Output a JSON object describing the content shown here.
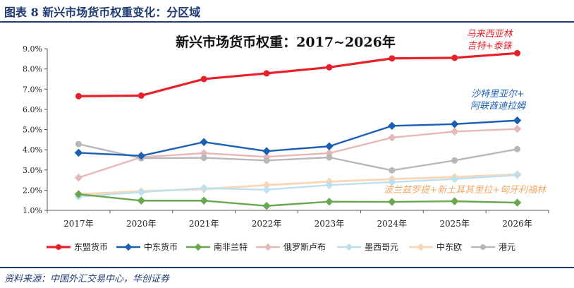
{
  "figure": {
    "title": "图表 8   新兴市场货币权重变化：分区域",
    "source": "资料来源：中国外汇交易中心，华创证券"
  },
  "chart_data": {
    "type": "line",
    "title": "新兴市场货币权重：2017~2026年",
    "categories": [
      "2017年",
      "2020年",
      "2021年",
      "2022年",
      "2023年",
      "2024年",
      "2025年",
      "2026年"
    ],
    "ylim": [
      1.0,
      9.0
    ],
    "yticks": [
      "1.0%",
      "2.0%",
      "3.0%",
      "4.0%",
      "5.0%",
      "6.0%",
      "7.0%",
      "8.0%",
      "9.0%"
    ],
    "grid": false,
    "legend": "bottom",
    "series": [
      {
        "name": "东盟货币",
        "color": "#e8202a",
        "marker": "circle",
        "width": 3.2,
        "values": [
          6.65,
          6.68,
          7.5,
          7.78,
          8.08,
          8.52,
          8.55,
          8.78
        ]
      },
      {
        "name": "中东货币",
        "color": "#1a5fb4",
        "marker": "diamond",
        "width": 2.4,
        "values": [
          3.85,
          3.7,
          4.38,
          3.93,
          4.17,
          5.18,
          5.27,
          5.45
        ]
      },
      {
        "name": "南非兰特",
        "color": "#6aa84f",
        "marker": "diamond",
        "width": 2.4,
        "values": [
          1.8,
          1.48,
          1.48,
          1.22,
          1.43,
          1.42,
          1.45,
          1.38
        ]
      },
      {
        "name": "俄罗斯卢布",
        "color": "#e6b8b8",
        "marker": "diamond",
        "width": 2.4,
        "values": [
          2.62,
          3.63,
          3.83,
          3.65,
          3.83,
          4.6,
          4.9,
          5.03
        ]
      },
      {
        "name": "墨西哥元",
        "color": "#bde0f0",
        "marker": "diamond",
        "width": 2.4,
        "values": [
          1.68,
          1.9,
          2.1,
          2.02,
          2.25,
          2.4,
          2.55,
          2.75
        ]
      },
      {
        "name": "中东欧",
        "color": "#fad6b4",
        "marker": "diamond",
        "width": 2.8,
        "values": [
          1.8,
          1.95,
          2.05,
          2.25,
          2.42,
          2.55,
          2.65,
          2.78
        ]
      },
      {
        "name": "港元",
        "color": "#b8b8b8",
        "marker": "circle",
        "width": 2.4,
        "values": [
          4.28,
          3.58,
          3.6,
          3.47,
          3.62,
          2.98,
          3.47,
          4.03
        ]
      }
    ],
    "annotations": [
      {
        "lines": [
          "马来西亚林",
          "吉特+泰铢"
        ],
        "color": "#e8202a"
      },
      {
        "lines": [
          "沙特里亚尔+",
          "阿联酋迪拉姆"
        ],
        "color": "#1a5fb4"
      },
      {
        "lines": [
          "波兰兹罗提+新土耳其里拉+匈牙利福林"
        ],
        "color": "#f0a868"
      }
    ]
  }
}
